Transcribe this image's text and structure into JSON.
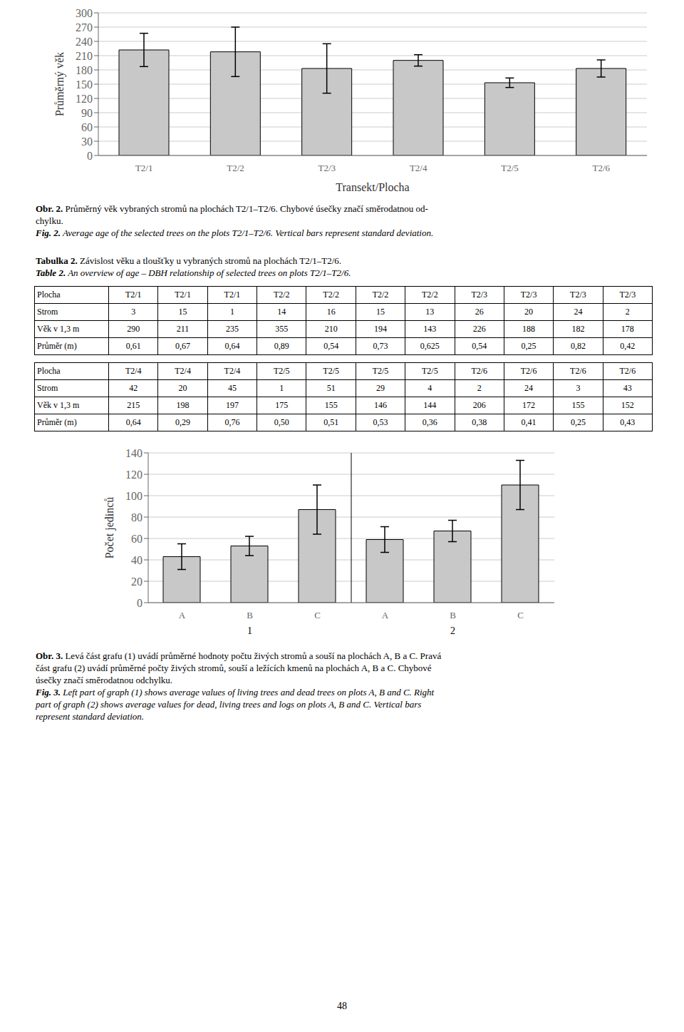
{
  "chart_data": [
    {
      "type": "bar",
      "categories": [
        "T2/1",
        "T2/2",
        "T2/3",
        "T2/4",
        "T2/5",
        "T2/6"
      ],
      "values": [
        222,
        218,
        183,
        200,
        153,
        183
      ],
      "errors": [
        35,
        52,
        52,
        12,
        10,
        18
      ],
      "xlabel": "Transekt/Plocha",
      "ylabel": "Průměrný věk",
      "ylim": [
        0,
        300
      ],
      "yticks": [
        0,
        30,
        60,
        90,
        120,
        150,
        180,
        210,
        240,
        270,
        300
      ],
      "color": "#c8c8c8",
      "grid": true,
      "caption": [
        [
          [
            "Obr. 2.",
            " Průměrný věk vybraných stromů na plochách T2/1–T2/6. Chybové úsečky značí směrodatnou od-"
          ],
          [
            "chylku."
          ]
        ],
        [
          [
            "Fig. 2.",
            " Average age of the selected trees on the plots T2/1–T2/6. Vertical bars represent standard deviation."
          ]
        ]
      ]
    },
    {
      "type": "bar",
      "categories": [
        "A",
        "B",
        "C",
        "A",
        "B",
        "C"
      ],
      "values": [
        43,
        53,
        87,
        59,
        67,
        110
      ],
      "errors": [
        12,
        9,
        23,
        12,
        10,
        23
      ],
      "ylabel": "Počet jedinců",
      "ylim": [
        0,
        140
      ],
      "yticks": [
        0,
        20,
        40,
        60,
        80,
        100,
        120,
        140
      ],
      "color": "#c8c8c8",
      "grid": true,
      "group_labels": [
        "1",
        "2"
      ],
      "caption": [
        [
          [
            "Obr. 3.",
            " Levá část grafu (1) uvádí průměrné hodnoty počtu živých stromů a souší na plochách A, B a C. Pravá"
          ],
          [
            "část grafu (2) uvádí průměrné počty živých stromů, souší a ležících kmenů na plochách A, B a C. Chybové"
          ],
          [
            "úsečky značí směrodatnou odchylku."
          ]
        ],
        [
          [
            "Fig. 3.",
            " Left part of graph (1) shows average values of living trees and dead trees on plots A, B and C. Right"
          ],
          [
            "part of graph (2) shows average values for dead, living trees and logs on plots A, B and C. Vertical bars"
          ],
          [
            "represent standard deviation."
          ]
        ]
      ]
    }
  ],
  "tables": {
    "caption": [
      [
        [
          "Tabulka 2.",
          " Závislost věku a tloušťky u vybraných stromů na plochách T2/1–T2/6."
        ]
      ],
      [
        [
          "Table 2.",
          " An overview of age – DBH relationship of selected trees on plots T2/1–T2/6."
        ]
      ]
    ],
    "grids": [
      [
        [
          "Plocha",
          "T2/1",
          "T2/1",
          "T2/1",
          "T2/2",
          "T2/2",
          "T2/2",
          "T2/2",
          "T2/3",
          "T2/3",
          "T2/3",
          "T2/3"
        ],
        [
          "Strom",
          "3",
          "15",
          "1",
          "14",
          "16",
          "15",
          "13",
          "26",
          "20",
          "24",
          "2"
        ],
        [
          "Věk v 1,3 m",
          "290",
          "211",
          "235",
          "355",
          "210",
          "194",
          "143",
          "226",
          "188",
          "182",
          "178"
        ],
        [
          "Průměr (m)",
          "0,61",
          "0,67",
          "0,64",
          "0,89",
          "0,54",
          "0,73",
          "0,625",
          "0,54",
          "0,25",
          "0,82",
          "0,42"
        ]
      ],
      [
        [
          "Plocha",
          "T2/4",
          "T2/4",
          "T2/4",
          "T2/5",
          "T2/5",
          "T2/5",
          "T2/5",
          "T2/6",
          "T2/6",
          "T2/6",
          "T2/6"
        ],
        [
          "Strom",
          "42",
          "20",
          "45",
          "1",
          "51",
          "29",
          "4",
          "2",
          "24",
          "3",
          "43"
        ],
        [
          "Věk v 1,3 m",
          "215",
          "198",
          "197",
          "175",
          "155",
          "146",
          "144",
          "206",
          "172",
          "155",
          "152"
        ],
        [
          "Průměr (m)",
          "0,64",
          "0,29",
          "0,76",
          "0,50",
          "0,51",
          "0,53",
          "0,36",
          "0,38",
          "0,41",
          "0,25",
          "0,43"
        ]
      ]
    ]
  },
  "page_number": "48"
}
